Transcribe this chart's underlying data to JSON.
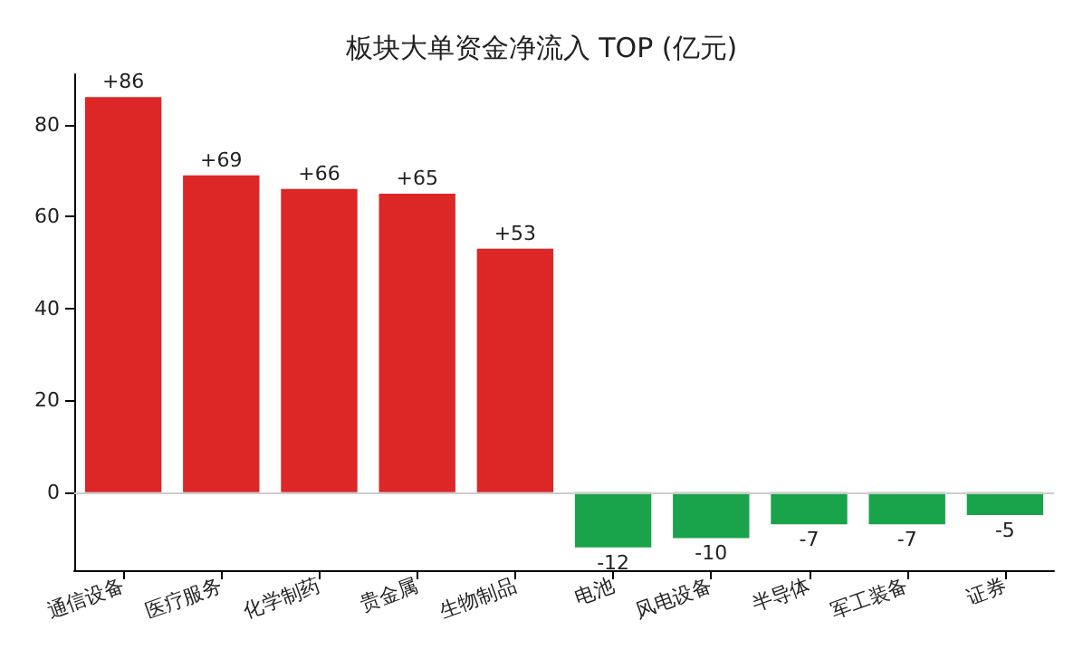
{
  "chart_data": {
    "type": "bar",
    "title": "板块大单资金净流入 TOP (亿元)",
    "categories": [
      "通信设备",
      "医疗服务",
      "化学制药",
      "贵金属",
      "生物制品",
      "电池",
      "风电设备",
      "半导体",
      "军工装备",
      "证券"
    ],
    "values": [
      86,
      69,
      66,
      65,
      53,
      -12,
      -10,
      -7,
      -7,
      -5
    ],
    "colors": [
      "#dd2727",
      "#dd2727",
      "#dd2727",
      "#dd2727",
      "#dd2727",
      "#19a34a",
      "#19a34a",
      "#19a34a",
      "#19a34a",
      "#19a34a"
    ],
    "value_labels": [
      "+86",
      "+69",
      "+66",
      "+65",
      "+53",
      "-12",
      "-10",
      "-7",
      "-7",
      "-5"
    ],
    "ylim": [
      -17,
      91
    ],
    "yticks": [
      0,
      20,
      40,
      60,
      80
    ],
    "ref_lines": [
      {
        "axis": "y",
        "value": 0,
        "label": null,
        "color": "#cccccc"
      }
    ],
    "grid": false
  }
}
